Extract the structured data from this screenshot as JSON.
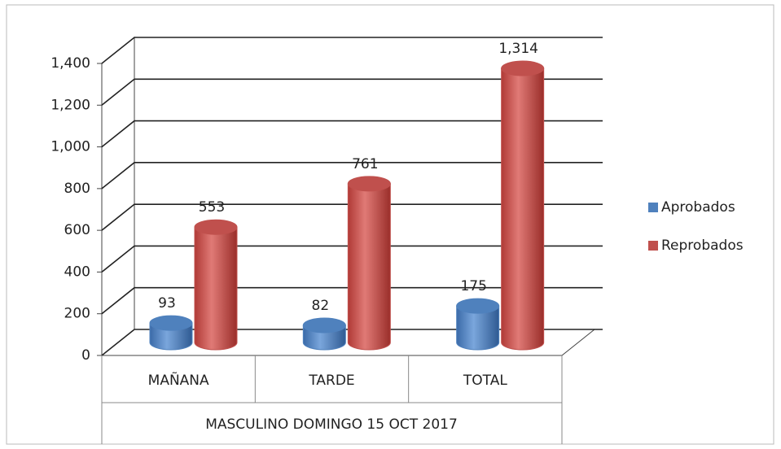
{
  "chart_data": {
    "type": "bar3d",
    "categories": [
      "MAÑANA",
      "TARDE",
      "TOTAL"
    ],
    "x_label": "MASCULINO DOMINGO 15 OCT 2017",
    "series": [
      {
        "name": "Aprobados",
        "color": "#4f81bd",
        "values": [
          93,
          82,
          175
        ]
      },
      {
        "name": "Reprobados",
        "color": "#c0504d",
        "values": [
          553,
          761,
          1314
        ],
        "value_labels": [
          "553",
          "761",
          "1,314"
        ]
      }
    ],
    "ylim": [
      0,
      1400
    ],
    "yticks": [
      0,
      200,
      400,
      600,
      800,
      {
        "value": 1000,
        "label": "1,000"
      },
      {
        "value": 1200,
        "label": "1,200"
      },
      {
        "value": 1400,
        "label": "1,400"
      }
    ],
    "grid": true,
    "legend": "right"
  }
}
